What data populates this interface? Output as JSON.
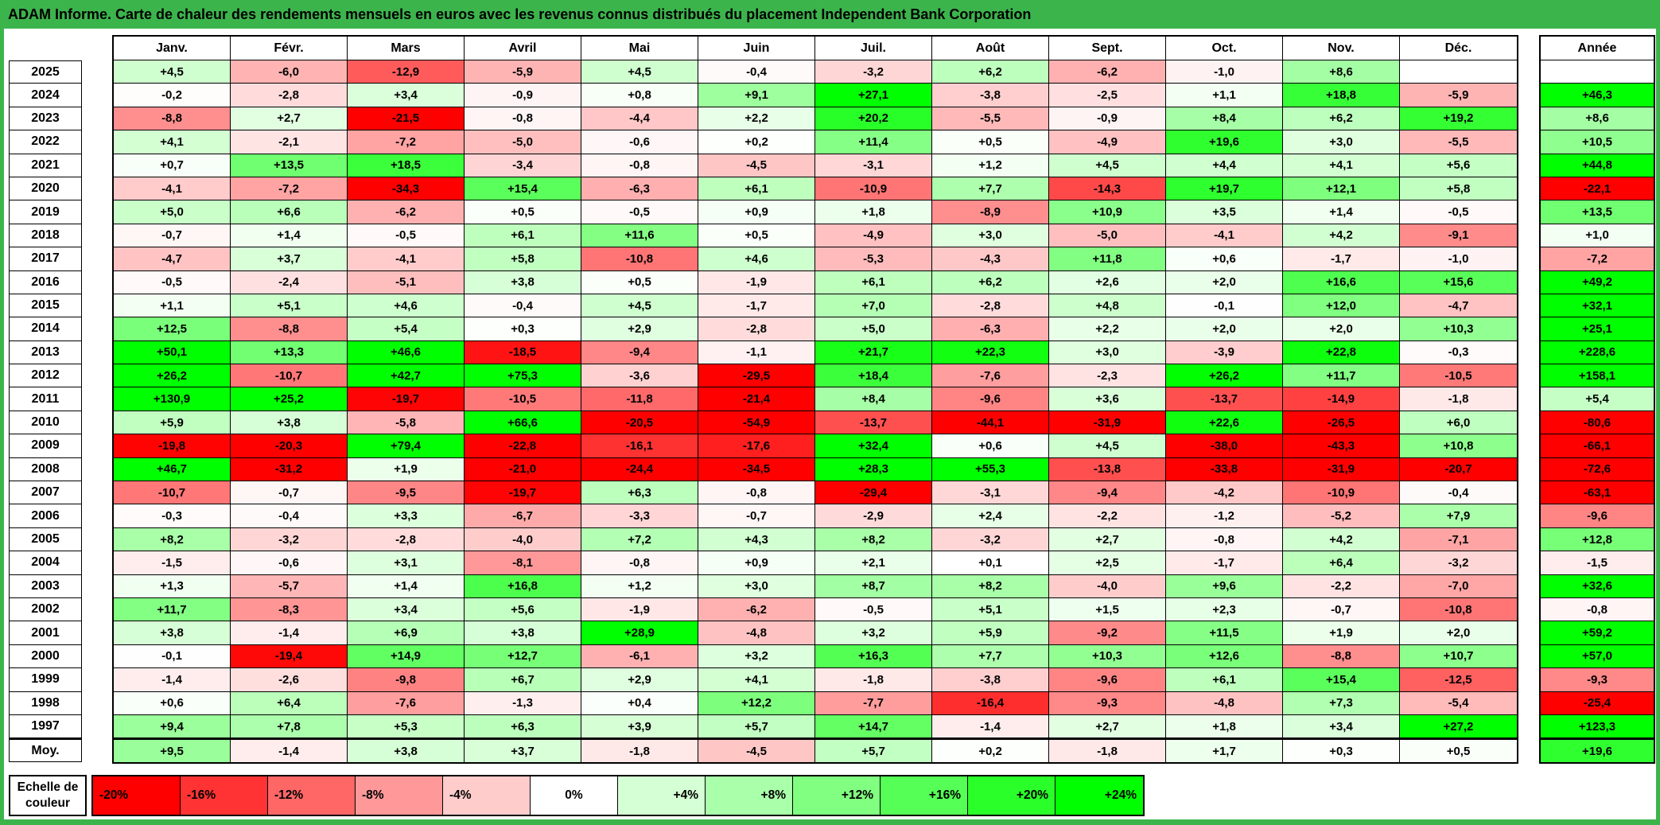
{
  "chart_data": {
    "type": "heatmap",
    "title": "ADAM Informe. Carte de chaleur des rendements mensuels en euros avec les revenus connus distribués du placement Independent Bank Corporation",
    "unit": "%",
    "x_labels": [
      "Janv.",
      "Févr.",
      "Mars",
      "Avril",
      "Mai",
      "Juin",
      "Juil.",
      "Août",
      "Sept.",
      "Oct.",
      "Nov.",
      "Déc."
    ],
    "annual_column_label": "Année",
    "color_scale": {
      "min": -20,
      "mid": 0,
      "max": 24,
      "min_color": "#FF0000",
      "mid_color": "#FFFFFF",
      "max_color": "#00FF00"
    },
    "rows": [
      {
        "year": "2025",
        "values": [
          "+4,5",
          "-6,0",
          "-12,9",
          "-5,9",
          "+4,5",
          "-0,4",
          "-3,2",
          "+6,2",
          "-6,2",
          "-1,0",
          "+8,6",
          ""
        ],
        "annee": ""
      },
      {
        "year": "2024",
        "values": [
          "-0,2",
          "-2,8",
          "+3,4",
          "-0,9",
          "+0,8",
          "+9,1",
          "+27,1",
          "-3,8",
          "-2,5",
          "+1,1",
          "+18,8",
          "-5,9"
        ],
        "annee": "+46,3"
      },
      {
        "year": "2023",
        "values": [
          "-8,8",
          "+2,7",
          "-21,5",
          "-0,8",
          "-4,4",
          "+2,2",
          "+20,2",
          "-5,5",
          "-0,9",
          "+8,4",
          "+6,2",
          "+19,2"
        ],
        "annee": "+8,6"
      },
      {
        "year": "2022",
        "values": [
          "+4,1",
          "-2,1",
          "-7,2",
          "-5,0",
          "-0,6",
          "+0,2",
          "+11,4",
          "+0,5",
          "-4,9",
          "+19,6",
          "+3,0",
          "-5,5"
        ],
        "annee": "+10,5"
      },
      {
        "year": "2021",
        "values": [
          "+0,7",
          "+13,5",
          "+18,5",
          "-3,4",
          "-0,8",
          "-4,5",
          "-3,1",
          "+1,2",
          "+4,5",
          "+4,4",
          "+4,1",
          "+5,6"
        ],
        "annee": "+44,8"
      },
      {
        "year": "2020",
        "values": [
          "-4,1",
          "-7,2",
          "-34,3",
          "+15,4",
          "-6,3",
          "+6,1",
          "-10,9",
          "+7,7",
          "-14,3",
          "+19,7",
          "+12,1",
          "+5,8"
        ],
        "annee": "-22,1"
      },
      {
        "year": "2019",
        "values": [
          "+5,0",
          "+6,6",
          "-6,2",
          "+0,5",
          "-0,5",
          "+0,9",
          "+1,8",
          "-8,9",
          "+10,9",
          "+3,5",
          "+1,4",
          "-0,5"
        ],
        "annee": "+13,5"
      },
      {
        "year": "2018",
        "values": [
          "-0,7",
          "+1,4",
          "-0,5",
          "+6,1",
          "+11,6",
          "+0,5",
          "-4,9",
          "+3,0",
          "-5,0",
          "-4,1",
          "+4,2",
          "-9,1"
        ],
        "annee": "+1,0"
      },
      {
        "year": "2017",
        "values": [
          "-4,7",
          "+3,7",
          "-4,1",
          "+5,8",
          "-10,8",
          "+4,6",
          "-5,3",
          "-4,3",
          "+11,8",
          "+0,6",
          "-1,7",
          "-1,0"
        ],
        "annee": "-7,2"
      },
      {
        "year": "2016",
        "values": [
          "-0,5",
          "-2,4",
          "-5,1",
          "+3,8",
          "+0,5",
          "-1,9",
          "+6,1",
          "+6,2",
          "+2,6",
          "+2,0",
          "+16,6",
          "+15,6"
        ],
        "annee": "+49,2"
      },
      {
        "year": "2015",
        "values": [
          "+1,1",
          "+5,1",
          "+4,6",
          "-0,4",
          "+4,5",
          "-1,7",
          "+7,0",
          "-2,8",
          "+4,8",
          "-0,1",
          "+12,0",
          "-4,7"
        ],
        "annee": "+32,1"
      },
      {
        "year": "2014",
        "values": [
          "+12,5",
          "-8,8",
          "+5,4",
          "+0,3",
          "+2,9",
          "-2,8",
          "+5,0",
          "-6,3",
          "+2,2",
          "+2,0",
          "+2,0",
          "+10,3"
        ],
        "annee": "+25,1"
      },
      {
        "year": "2013",
        "values": [
          "+50,1",
          "+13,3",
          "+46,6",
          "-18,5",
          "-9,4",
          "-1,1",
          "+21,7",
          "+22,3",
          "+3,0",
          "-3,9",
          "+22,8",
          "-0,3"
        ],
        "annee": "+228,6"
      },
      {
        "year": "2012",
        "values": [
          "+26,2",
          "-10,7",
          "+42,7",
          "+75,3",
          "-3,6",
          "-29,5",
          "+18,4",
          "-7,6",
          "-2,3",
          "+26,2",
          "+11,7",
          "-10,5"
        ],
        "annee": "+158,1"
      },
      {
        "year": "2011",
        "values": [
          "+130,9",
          "+25,2",
          "-19,7",
          "-10,5",
          "-11,8",
          "-21,4",
          "+8,4",
          "-9,6",
          "+3,6",
          "-13,7",
          "-14,9",
          "-1,8"
        ],
        "annee": "+5,4"
      },
      {
        "year": "2010",
        "values": [
          "+5,9",
          "+3,8",
          "-5,8",
          "+66,6",
          "-20,5",
          "-54,9",
          "-13,7",
          "-44,1",
          "-31,9",
          "+22,6",
          "-26,5",
          "+6,0"
        ],
        "annee": "-80,6"
      },
      {
        "year": "2009",
        "values": [
          "-19,8",
          "-20,3",
          "+79,4",
          "-22,8",
          "-16,1",
          "-17,6",
          "+32,4",
          "+0,6",
          "+4,5",
          "-38,0",
          "-43,3",
          "+10,8"
        ],
        "annee": "-66,1"
      },
      {
        "year": "2008",
        "values": [
          "+46,7",
          "-31,2",
          "+1,9",
          "-21,0",
          "-24,4",
          "-34,5",
          "+28,3",
          "+55,3",
          "-13,8",
          "-33,8",
          "-31,9",
          "-20,7"
        ],
        "annee": "-72,6"
      },
      {
        "year": "2007",
        "values": [
          "-10,7",
          "-0,7",
          "-9,5",
          "-19,7",
          "+6,3",
          "-0,8",
          "-29,4",
          "-3,1",
          "-9,4",
          "-4,2",
          "-10,9",
          "-0,4"
        ],
        "annee": "-63,1"
      },
      {
        "year": "2006",
        "values": [
          "-0,3",
          "-0,4",
          "+3,3",
          "-6,7",
          "-3,3",
          "-0,7",
          "-2,9",
          "+2,4",
          "-2,2",
          "-1,2",
          "-5,2",
          "+7,9"
        ],
        "annee": "-9,6"
      },
      {
        "year": "2005",
        "values": [
          "+8,2",
          "-3,2",
          "-2,8",
          "-4,0",
          "+7,2",
          "+4,3",
          "+8,2",
          "-3,2",
          "+2,7",
          "-0,8",
          "+4,2",
          "-7,1"
        ],
        "annee": "+12,8"
      },
      {
        "year": "2004",
        "values": [
          "-1,5",
          "-0,6",
          "+3,1",
          "-8,1",
          "-0,8",
          "+0,9",
          "+2,1",
          "+0,1",
          "+2,5",
          "-1,7",
          "+6,4",
          "-3,2"
        ],
        "annee": "-1,5"
      },
      {
        "year": "2003",
        "values": [
          "+1,3",
          "-5,7",
          "+1,4",
          "+16,8",
          "+1,2",
          "+3,0",
          "+8,7",
          "+8,2",
          "-4,0",
          "+9,6",
          "-2,2",
          "-7,0"
        ],
        "annee": "+32,6"
      },
      {
        "year": "2002",
        "values": [
          "+11,7",
          "-8,3",
          "+3,4",
          "+5,6",
          "-1,9",
          "-6,2",
          "-0,5",
          "+5,1",
          "+1,5",
          "+2,3",
          "-0,7",
          "-10,8"
        ],
        "annee": "-0,8"
      },
      {
        "year": "2001",
        "values": [
          "+3,8",
          "-1,4",
          "+6,9",
          "+3,8",
          "+28,9",
          "-4,8",
          "+3,2",
          "+5,9",
          "-9,2",
          "+11,5",
          "+1,9",
          "+2,0"
        ],
        "annee": "+59,2"
      },
      {
        "year": "2000",
        "values": [
          "-0,1",
          "-19,4",
          "+14,9",
          "+12,7",
          "-6,1",
          "+3,2",
          "+16,3",
          "+7,7",
          "+10,3",
          "+12,6",
          "-8,8",
          "+10,7"
        ],
        "annee": "+57,0"
      },
      {
        "year": "1999",
        "values": [
          "-1,4",
          "-2,6",
          "-9,8",
          "+6,7",
          "+2,9",
          "+4,1",
          "-1,8",
          "-3,8",
          "-9,6",
          "+6,1",
          "+15,4",
          "-12,5"
        ],
        "annee": "-9,3"
      },
      {
        "year": "1998",
        "values": [
          "+0,6",
          "+6,4",
          "-7,6",
          "-1,3",
          "+0,4",
          "+12,2",
          "-7,7",
          "-16,4",
          "-9,3",
          "-4,8",
          "+7,3",
          "-5,4"
        ],
        "annee": "-25,4"
      },
      {
        "year": "1997",
        "values": [
          "+9,4",
          "+7,8",
          "+5,3",
          "+6,3",
          "+3,9",
          "+5,7",
          "+14,7",
          "-1,4",
          "+2,7",
          "+1,8",
          "+3,4",
          "+27,2"
        ],
        "annee": "+123,3"
      }
    ],
    "moy": {
      "label": "Moy.",
      "values": [
        "+9,5",
        "-1,4",
        "+3,8",
        "+3,7",
        "-1,8",
        "-4,5",
        "+5,7",
        "+0,2",
        "-1,8",
        "+1,7",
        "+0,3",
        "+0,5"
      ],
      "annee": "+19,6"
    },
    "legend": {
      "title": "Echelle de couleur",
      "stops": [
        {
          "label": "-20%",
          "value": -20
        },
        {
          "label": "-16%",
          "value": -16
        },
        {
          "label": "-12%",
          "value": -12
        },
        {
          "label": "-8%",
          "value": -8
        },
        {
          "label": "-4%",
          "value": -4
        },
        {
          "label": "0%",
          "value": 0
        },
        {
          "label": "+4%",
          "value": 4
        },
        {
          "label": "+8%",
          "value": 8
        },
        {
          "label": "+12%",
          "value": 12
        },
        {
          "label": "+16%",
          "value": 16
        },
        {
          "label": "+20%",
          "value": 20
        },
        {
          "label": "+24%",
          "value": 24
        }
      ]
    },
    "colors": {
      "title_bar": "#3CB44C",
      "grid_border": "#000000",
      "background": "#FFFFFF"
    }
  }
}
